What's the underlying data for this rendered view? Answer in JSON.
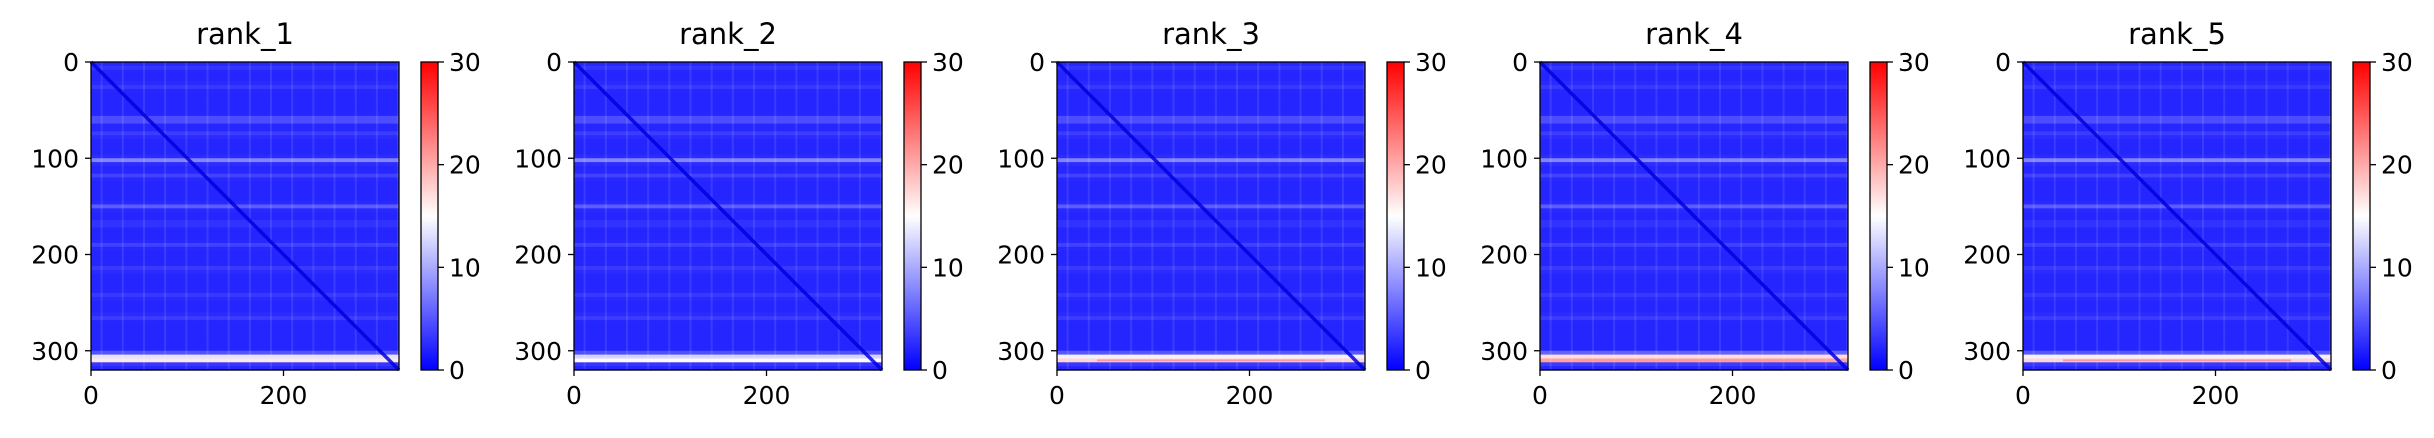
{
  "chart_data": [
    {
      "type": "heatmap",
      "title": "rank_1",
      "rows": 320,
      "cols": 320,
      "xlim": [
        0,
        320
      ],
      "ylim": [
        320,
        0
      ],
      "x_ticks": [
        0,
        200
      ],
      "y_ticks": [
        0,
        100,
        200,
        300
      ],
      "colorbar": {
        "range": [
          0,
          30
        ],
        "ticks": [
          0,
          10,
          20,
          30
        ]
      },
      "colormap": "bwr",
      "bright_rows": [
        60,
        102,
        150,
        305,
        310
      ],
      "peak_value": 17
    },
    {
      "type": "heatmap",
      "title": "rank_2",
      "rows": 320,
      "cols": 320,
      "xlim": [
        0,
        320
      ],
      "ylim": [
        320,
        0
      ],
      "x_ticks": [
        0,
        200
      ],
      "y_ticks": [
        0,
        100,
        200,
        300
      ],
      "colorbar": {
        "range": [
          0,
          30
        ],
        "ticks": [
          0,
          10,
          20,
          30
        ]
      },
      "colormap": "bwr",
      "bright_rows": [
        60,
        102,
        150,
        305,
        310
      ],
      "peak_value": 16
    },
    {
      "type": "heatmap",
      "title": "rank_3",
      "rows": 320,
      "cols": 320,
      "xlim": [
        0,
        320
      ],
      "ylim": [
        320,
        0
      ],
      "x_ticks": [
        0,
        200
      ],
      "y_ticks": [
        0,
        100,
        200,
        300
      ],
      "colorbar": {
        "range": [
          0,
          30
        ],
        "ticks": [
          0,
          10,
          20,
          30
        ]
      },
      "colormap": "bwr",
      "bright_rows": [
        60,
        102,
        150,
        305,
        310
      ],
      "peak_value": 18
    },
    {
      "type": "heatmap",
      "title": "rank_4",
      "rows": 320,
      "cols": 320,
      "xlim": [
        0,
        320
      ],
      "ylim": [
        320,
        0
      ],
      "x_ticks": [
        0,
        200
      ],
      "y_ticks": [
        0,
        100,
        200,
        300
      ],
      "colorbar": {
        "range": [
          0,
          30
        ],
        "ticks": [
          0,
          10,
          20,
          30
        ]
      },
      "colormap": "bwr",
      "bright_rows": [
        60,
        102,
        150,
        305,
        310
      ],
      "peak_value": 21
    },
    {
      "type": "heatmap",
      "title": "rank_5",
      "rows": 320,
      "cols": 320,
      "xlim": [
        0,
        320
      ],
      "ylim": [
        320,
        0
      ],
      "x_ticks": [
        0,
        200
      ],
      "y_ticks": [
        0,
        100,
        200,
        300
      ],
      "colorbar": {
        "range": [
          0,
          30
        ],
        "ticks": [
          0,
          10,
          20,
          30
        ]
      },
      "colormap": "bwr",
      "bright_rows": [
        60,
        102,
        150,
        305,
        310
      ],
      "peak_value": 18
    }
  ]
}
